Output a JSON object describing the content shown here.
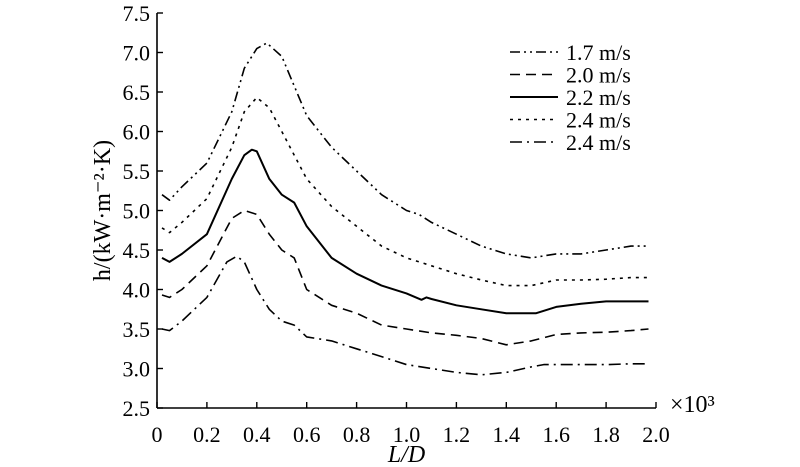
{
  "chart_data": {
    "type": "line",
    "xlabel": "L/D",
    "ylabel": "h/(kW·m⁻²·K)",
    "x_multiplier": "×10³",
    "xlim": [
      0,
      2.0
    ],
    "ylim": [
      2.5,
      7.5
    ],
    "x_ticks": [
      "0",
      "0.2",
      "0.4",
      "0.6",
      "0.8",
      "1.0",
      "1.2",
      "1.4",
      "1.6",
      "1.8",
      "2.0"
    ],
    "y_ticks": [
      "2.5",
      "3.0",
      "3.5",
      "4.0",
      "4.5",
      "5.0",
      "5.5",
      "6.0",
      "6.5",
      "7.0",
      "7.5"
    ],
    "grid": false,
    "legend_position": "top-right",
    "series": [
      {
        "name": "1.7 m/s",
        "dash": "dash-dot-dot",
        "points": [
          [
            0.02,
            5.2
          ],
          [
            0.05,
            5.13
          ],
          [
            0.1,
            5.3
          ],
          [
            0.2,
            5.6
          ],
          [
            0.3,
            6.25
          ],
          [
            0.35,
            6.8
          ],
          [
            0.4,
            7.05
          ],
          [
            0.44,
            7.12
          ],
          [
            0.5,
            6.95
          ],
          [
            0.6,
            6.2
          ],
          [
            0.7,
            5.8
          ],
          [
            0.8,
            5.5
          ],
          [
            0.9,
            5.2
          ],
          [
            1.0,
            5.0
          ],
          [
            1.05,
            4.95
          ],
          [
            1.1,
            4.85
          ],
          [
            1.2,
            4.7
          ],
          [
            1.3,
            4.55
          ],
          [
            1.4,
            4.45
          ],
          [
            1.5,
            4.4
          ],
          [
            1.6,
            4.45
          ],
          [
            1.7,
            4.45
          ],
          [
            1.8,
            4.5
          ],
          [
            1.9,
            4.55
          ],
          [
            1.97,
            4.55
          ]
        ]
      },
      {
        "name": "2.0 m/s",
        "dash": "dash",
        "points": [
          [
            0.02,
            3.93
          ],
          [
            0.05,
            3.9
          ],
          [
            0.1,
            4.0
          ],
          [
            0.2,
            4.3
          ],
          [
            0.3,
            4.9
          ],
          [
            0.35,
            5.0
          ],
          [
            0.4,
            4.95
          ],
          [
            0.45,
            4.7
          ],
          [
            0.5,
            4.5
          ],
          [
            0.55,
            4.4
          ],
          [
            0.6,
            4.0
          ],
          [
            0.7,
            3.8
          ],
          [
            0.8,
            3.7
          ],
          [
            0.9,
            3.55
          ],
          [
            1.0,
            3.5
          ],
          [
            1.1,
            3.45
          ],
          [
            1.2,
            3.42
          ],
          [
            1.3,
            3.38
          ],
          [
            1.4,
            3.3
          ],
          [
            1.5,
            3.35
          ],
          [
            1.6,
            3.43
          ],
          [
            1.7,
            3.45
          ],
          [
            1.8,
            3.46
          ],
          [
            1.9,
            3.48
          ],
          [
            1.97,
            3.5
          ]
        ]
      },
      {
        "name": "2.2 m/s",
        "dash": "solid",
        "points": [
          [
            0.02,
            4.4
          ],
          [
            0.05,
            4.35
          ],
          [
            0.1,
            4.45
          ],
          [
            0.2,
            4.7
          ],
          [
            0.3,
            5.4
          ],
          [
            0.35,
            5.7
          ],
          [
            0.38,
            5.77
          ],
          [
            0.4,
            5.75
          ],
          [
            0.45,
            5.4
          ],
          [
            0.5,
            5.2
          ],
          [
            0.55,
            5.1
          ],
          [
            0.6,
            4.8
          ],
          [
            0.7,
            4.4
          ],
          [
            0.8,
            4.2
          ],
          [
            0.9,
            4.05
          ],
          [
            1.0,
            3.95
          ],
          [
            1.06,
            3.87
          ],
          [
            1.08,
            3.9
          ],
          [
            1.1,
            3.88
          ],
          [
            1.2,
            3.8
          ],
          [
            1.3,
            3.75
          ],
          [
            1.4,
            3.7
          ],
          [
            1.52,
            3.7
          ],
          [
            1.6,
            3.78
          ],
          [
            1.7,
            3.82
          ],
          [
            1.8,
            3.85
          ],
          [
            1.9,
            3.85
          ],
          [
            1.97,
            3.85
          ]
        ]
      },
      {
        "name": "2.4 m/s",
        "dash": "dot",
        "points": [
          [
            0.02,
            4.78
          ],
          [
            0.05,
            4.72
          ],
          [
            0.1,
            4.85
          ],
          [
            0.2,
            5.15
          ],
          [
            0.3,
            5.8
          ],
          [
            0.35,
            6.25
          ],
          [
            0.4,
            6.43
          ],
          [
            0.45,
            6.3
          ],
          [
            0.5,
            6.0
          ],
          [
            0.6,
            5.4
          ],
          [
            0.7,
            5.05
          ],
          [
            0.8,
            4.8
          ],
          [
            0.9,
            4.55
          ],
          [
            1.0,
            4.4
          ],
          [
            1.1,
            4.3
          ],
          [
            1.2,
            4.2
          ],
          [
            1.3,
            4.12
          ],
          [
            1.4,
            4.05
          ],
          [
            1.5,
            4.05
          ],
          [
            1.6,
            4.12
          ],
          [
            1.7,
            4.12
          ],
          [
            1.8,
            4.13
          ],
          [
            1.9,
            4.15
          ],
          [
            1.97,
            4.15
          ]
        ]
      },
      {
        "name": "2.4 m/s",
        "dash": "dash-dot",
        "points": [
          [
            0.02,
            3.5
          ],
          [
            0.05,
            3.48
          ],
          [
            0.1,
            3.6
          ],
          [
            0.2,
            3.9
          ],
          [
            0.28,
            4.35
          ],
          [
            0.32,
            4.42
          ],
          [
            0.35,
            4.35
          ],
          [
            0.4,
            4.0
          ],
          [
            0.45,
            3.75
          ],
          [
            0.5,
            3.6
          ],
          [
            0.55,
            3.55
          ],
          [
            0.6,
            3.4
          ],
          [
            0.7,
            3.35
          ],
          [
            0.8,
            3.25
          ],
          [
            0.9,
            3.15
          ],
          [
            1.0,
            3.05
          ],
          [
            1.1,
            3.0
          ],
          [
            1.2,
            2.95
          ],
          [
            1.3,
            2.92
          ],
          [
            1.4,
            2.95
          ],
          [
            1.5,
            3.02
          ],
          [
            1.55,
            3.05
          ],
          [
            1.6,
            3.05
          ],
          [
            1.7,
            3.05
          ],
          [
            1.8,
            3.05
          ],
          [
            1.9,
            3.06
          ],
          [
            1.97,
            3.06
          ]
        ]
      }
    ]
  }
}
